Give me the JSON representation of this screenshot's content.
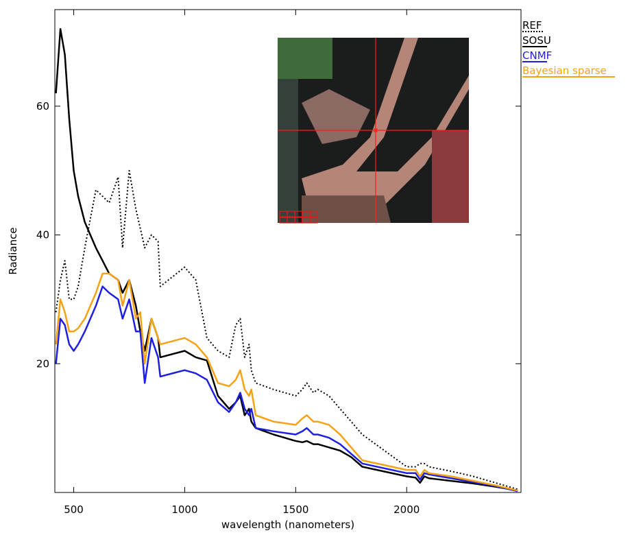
{
  "chart_data": {
    "type": "line",
    "xlabel": "wavelength (nanometers)",
    "ylabel": "Radiance",
    "xlim": [
      415,
      2515
    ],
    "ylim": [
      0,
      75
    ],
    "xticks": [
      500,
      1000,
      1500,
      2000
    ],
    "yticks": [
      20,
      40,
      60
    ],
    "legend": "outside-right-top",
    "x": [
      420,
      440,
      460,
      480,
      500,
      520,
      550,
      600,
      630,
      660,
      700,
      720,
      750,
      780,
      800,
      820,
      850,
      880,
      890,
      1000,
      1050,
      1100,
      1150,
      1200,
      1230,
      1250,
      1270,
      1290,
      1300,
      1320,
      1400,
      1500,
      1530,
      1550,
      1580,
      1600,
      1650,
      1700,
      1750,
      1800,
      2000,
      2040,
      2060,
      2080,
      2100,
      2200,
      2300,
      2400,
      2500
    ],
    "series": [
      {
        "name": "REF",
        "color": "#000000",
        "dash": "dotted",
        "values": [
          28,
          33,
          36,
          30,
          30,
          32,
          38,
          47,
          46,
          45,
          49,
          38,
          50,
          44,
          41,
          38,
          40,
          39,
          32,
          35,
          33,
          24,
          22,
          21,
          26,
          27,
          21,
          23,
          19,
          17,
          16,
          15,
          16,
          17,
          15.5,
          16,
          15,
          13,
          11,
          9,
          4,
          4,
          4.5,
          4.5,
          4,
          3.3,
          2.5,
          1.5,
          0.5
        ]
      },
      {
        "name": "SOSU",
        "color": "#000000",
        "values": [
          62,
          72,
          68,
          58,
          50,
          46,
          42,
          38,
          36,
          34,
          33,
          31,
          33,
          29,
          25,
          22,
          27,
          24,
          21,
          22,
          21,
          20.5,
          15,
          13,
          14,
          15,
          12,
          13,
          11,
          10,
          9,
          8,
          7.8,
          8,
          7.5,
          7.5,
          7,
          6.5,
          5.5,
          4,
          2.5,
          2.3,
          1.5,
          2.5,
          2.2,
          1.8,
          1.4,
          0.9,
          0.3
        ]
      },
      {
        "name": "CNMF",
        "color": "#1f1fe0",
        "values": [
          20,
          27,
          26,
          23,
          22,
          23,
          25,
          29,
          32,
          31,
          30,
          27,
          30,
          25,
          25,
          17,
          24,
          21,
          18,
          19,
          18.5,
          17.5,
          14,
          12.5,
          14,
          15.5,
          13,
          12,
          13,
          10,
          9.5,
          9,
          9.5,
          10,
          9,
          9,
          8.5,
          7.5,
          6,
          4.5,
          3,
          3,
          2,
          3,
          2.8,
          2.2,
          1.6,
          1,
          0.2
        ]
      },
      {
        "name": "Bayesian sparse",
        "color": "#f5a214",
        "values": [
          23,
          30,
          28,
          25,
          25,
          25.5,
          27,
          31,
          34,
          34,
          33,
          29,
          33,
          27,
          28,
          20,
          27,
          24,
          23,
          24,
          23,
          21,
          17,
          16.5,
          17.5,
          19,
          16,
          15,
          16,
          12,
          11,
          10.5,
          11.5,
          12,
          11,
          11,
          10.5,
          9,
          7,
          5,
          3.5,
          3.5,
          2.5,
          3.5,
          3,
          2.5,
          1.8,
          1.1,
          0.3
        ]
      }
    ]
  }
}
